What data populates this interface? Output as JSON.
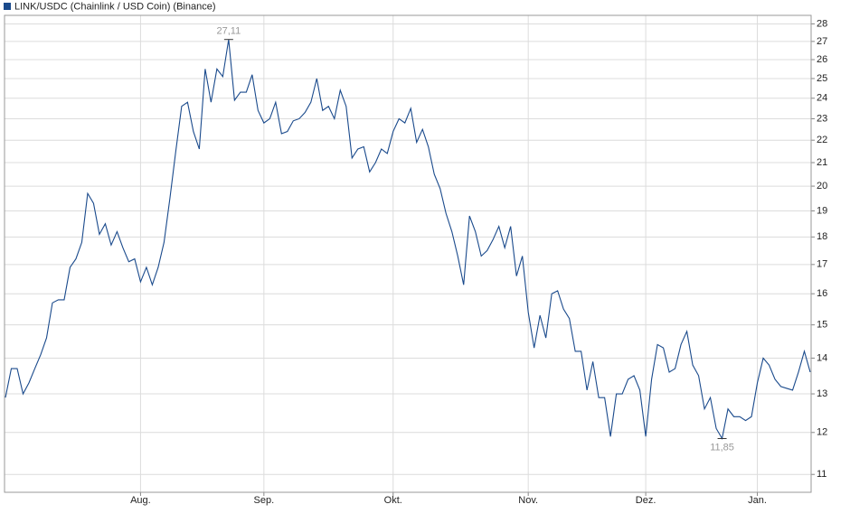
{
  "chart_data": {
    "type": "line",
    "log": true,
    "grid": true,
    "categories": [
      null,
      null,
      null,
      null,
      null,
      null,
      null,
      null,
      null,
      null,
      null,
      null,
      null,
      null,
      null,
      null,
      null,
      null,
      null,
      null,
      null,
      null,
      null,
      "Aug.",
      null,
      null,
      null,
      null,
      null,
      null,
      null,
      null,
      null,
      null,
      null,
      null,
      null,
      null,
      null,
      null,
      null,
      null,
      null,
      null,
      "Sep.",
      null,
      null,
      null,
      null,
      null,
      null,
      null,
      null,
      null,
      null,
      null,
      null,
      null,
      null,
      null,
      null,
      null,
      null,
      null,
      null,
      null,
      "Okt.",
      null,
      null,
      null,
      null,
      null,
      null,
      null,
      null,
      null,
      null,
      null,
      null,
      null,
      null,
      null,
      null,
      null,
      null,
      null,
      null,
      null,
      null,
      "Nov.",
      null,
      null,
      null,
      null,
      null,
      null,
      null,
      null,
      null,
      null,
      null,
      null,
      null,
      null,
      null,
      null,
      null,
      null,
      null,
      "Dez.",
      null,
      null,
      null,
      null,
      null,
      null,
      null,
      null,
      null,
      null,
      null,
      null,
      null,
      null,
      null,
      null,
      null,
      null,
      "Jan.",
      null,
      null,
      null,
      null,
      null,
      null,
      null,
      null,
      null
    ],
    "series": [
      {
        "name": "LINK/USDC (Chainlink / USD Coin) (Binance)",
        "color": "#1a4a8c",
        "values": [
          12.9,
          13.7,
          13.7,
          13.0,
          13.3,
          13.7,
          14.1,
          14.6,
          15.7,
          15.8,
          15.8,
          16.9,
          17.2,
          17.8,
          19.7,
          19.3,
          18.1,
          18.5,
          17.7,
          18.2,
          17.6,
          17.1,
          17.2,
          16.4,
          16.9,
          16.3,
          16.9,
          17.8,
          19.5,
          21.5,
          23.6,
          23.8,
          22.4,
          21.6,
          25.5,
          23.8,
          25.5,
          25.1,
          27.11,
          23.9,
          24.3,
          24.3,
          25.2,
          23.4,
          22.8,
          23.0,
          23.8,
          22.3,
          22.4,
          22.9,
          23.0,
          23.3,
          23.8,
          25.0,
          23.4,
          23.6,
          23.0,
          24.4,
          23.6,
          21.2,
          21.6,
          21.7,
          20.6,
          21.0,
          21.6,
          21.4,
          22.4,
          23.0,
          22.8,
          23.5,
          21.9,
          22.5,
          21.7,
          20.5,
          19.9,
          18.9,
          18.2,
          17.3,
          16.3,
          18.8,
          18.2,
          17.3,
          17.5,
          17.9,
          18.4,
          17.6,
          18.4,
          16.6,
          17.3,
          15.4,
          14.3,
          15.3,
          14.6,
          16.0,
          16.1,
          15.5,
          15.2,
          14.2,
          14.2,
          13.1,
          13.9,
          12.9,
          12.9,
          11.9,
          13.0,
          13.0,
          13.4,
          13.5,
          13.1,
          11.9,
          13.4,
          14.4,
          14.3,
          13.6,
          13.7,
          14.4,
          14.8,
          13.8,
          13.5,
          12.6,
          12.9,
          12.1,
          11.85,
          12.6,
          12.4,
          12.4,
          12.3,
          12.4,
          13.3,
          14.0,
          13.8,
          13.4,
          13.2,
          13.15,
          13.1,
          13.6,
          14.2,
          13.6
        ],
        "value_labels": [
          null,
          null,
          null,
          null,
          null,
          null,
          null,
          null,
          null,
          null,
          null,
          null,
          null,
          null,
          null,
          null,
          null,
          null,
          null,
          null,
          null,
          null,
          null,
          null,
          null,
          null,
          null,
          null,
          null,
          null,
          null,
          null,
          null,
          null,
          null,
          null,
          null,
          null,
          "27,11",
          null,
          null,
          null,
          null,
          null,
          null,
          null,
          null,
          null,
          null,
          null,
          null,
          null,
          null,
          null,
          null,
          null,
          null,
          null,
          null,
          null,
          null,
          null,
          null,
          null,
          null,
          null,
          null,
          null,
          null,
          null,
          null,
          null,
          null,
          null,
          null,
          null,
          null,
          null,
          null,
          null,
          null,
          null,
          null,
          null,
          null,
          null,
          null,
          null,
          null,
          null,
          null,
          null,
          null,
          null,
          null,
          null,
          null,
          null,
          null,
          null,
          null,
          null,
          null,
          null,
          null,
          null,
          null,
          null,
          null,
          null,
          null,
          null,
          null,
          null,
          null,
          null,
          null,
          null,
          null,
          null,
          null,
          null,
          "11,85",
          null,
          null,
          null,
          null,
          null,
          null,
          null,
          null,
          null,
          null,
          null,
          null,
          null,
          null,
          null
        ]
      }
    ],
    "ylim": [
      10.6,
      28.5
    ],
    "yticks": [
      11,
      12,
      13,
      14,
      15,
      16,
      17,
      18,
      19,
      20,
      21,
      22,
      23,
      24,
      25,
      26,
      27,
      28
    ]
  }
}
